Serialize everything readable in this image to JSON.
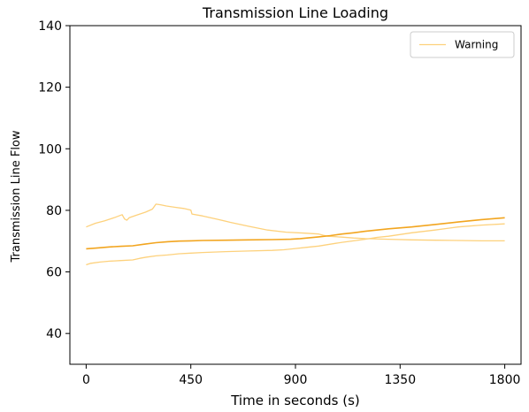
{
  "chart_data": {
    "type": "line",
    "title": "Transmission Line Loading",
    "xlabel": "Time in seconds (s)",
    "ylabel": "Transmission Line Flow",
    "xlim": [
      -70,
      1870
    ],
    "ylim": [
      30,
      140
    ],
    "xticks": [
      0,
      450,
      900,
      1350,
      1800
    ],
    "xtick_labels": [
      "0",
      "450",
      "900",
      "1350",
      "1800"
    ],
    "yticks": [
      40,
      60,
      80,
      100,
      120,
      140
    ],
    "ytick_labels": [
      "40",
      "60",
      "80",
      "100",
      "120",
      "140"
    ],
    "grid": false,
    "legend": {
      "placement": "top-right",
      "entries": [
        "Warning"
      ]
    },
    "colors": {
      "light": "#fdd17c",
      "dark": "#f2a51f",
      "axes": "#000000",
      "legend_border": "#cccccc"
    },
    "series": [
      {
        "name": "Warning",
        "color_key": "light",
        "x": [
          0,
          40,
          80,
          120,
          155,
          165,
          175,
          185,
          215,
          255,
          285,
          300,
          320,
          345,
          380,
          420,
          450,
          455,
          500,
          560,
          620,
          700,
          780,
          860,
          940,
          1000,
          1020,
          1040,
          1100,
          1150,
          1200,
          1300,
          1400,
          1500,
          1600,
          1700,
          1800
        ],
        "values": [
          74.6,
          75.8,
          76.6,
          77.6,
          78.6,
          77.2,
          76.8,
          77.6,
          78.4,
          79.4,
          80.4,
          82.0,
          81.8,
          81.4,
          81.0,
          80.6,
          80.1,
          78.8,
          78.2,
          77.2,
          76.1,
          74.8,
          73.6,
          72.9,
          72.6,
          72.3,
          71.9,
          71.6,
          71.3,
          71.0,
          70.8,
          70.6,
          70.4,
          70.3,
          70.2,
          70.1,
          70.1
        ]
      },
      {
        "name": "",
        "color_key": "dark",
        "x": [
          0,
          50,
          100,
          150,
          200,
          250,
          300,
          350,
          400,
          450,
          500,
          600,
          700,
          800,
          880,
          920,
          950,
          1000,
          1050,
          1100,
          1150,
          1200,
          1250,
          1300,
          1400,
          1500,
          1600,
          1700,
          1800
        ],
        "values": [
          67.5,
          67.8,
          68.1,
          68.3,
          68.5,
          69.0,
          69.5,
          69.8,
          70.0,
          70.1,
          70.2,
          70.3,
          70.4,
          70.5,
          70.6,
          70.8,
          71.0,
          71.4,
          71.8,
          72.3,
          72.7,
          73.2,
          73.6,
          74.0,
          74.6,
          75.4,
          76.2,
          77.0,
          77.6
        ]
      },
      {
        "name": "",
        "color_key": "light",
        "x": [
          0,
          20,
          60,
          100,
          150,
          200,
          230,
          260,
          300,
          350,
          400,
          450,
          500,
          600,
          700,
          800,
          850,
          900,
          950,
          1000,
          1050,
          1100,
          1150,
          1200,
          1250,
          1300,
          1400,
          1500,
          1600,
          1700,
          1800
        ],
        "values": [
          62.3,
          62.8,
          63.2,
          63.5,
          63.7,
          63.9,
          64.4,
          64.8,
          65.2,
          65.5,
          65.9,
          66.1,
          66.3,
          66.6,
          66.8,
          67.0,
          67.2,
          67.6,
          68.0,
          68.4,
          69.0,
          69.6,
          70.1,
          70.6,
          71.2,
          71.6,
          72.7,
          73.6,
          74.6,
          75.2,
          75.6
        ]
      }
    ]
  }
}
